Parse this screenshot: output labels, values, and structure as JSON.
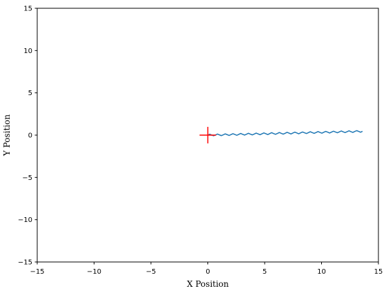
{
  "chart_data": {
    "type": "line",
    "xlabel": "X Position",
    "ylabel": "Y Position",
    "xlim": [
      -15,
      15
    ],
    "ylim": [
      -15,
      15
    ],
    "xticks": [
      {
        "value": -15,
        "label": "−15"
      },
      {
        "value": -10,
        "label": "−10"
      },
      {
        "value": -5,
        "label": "−5"
      },
      0,
      5,
      10,
      15
    ],
    "yticks": [
      {
        "value": -15,
        "label": "−15"
      },
      {
        "value": -10,
        "label": "−10"
      },
      {
        "value": -5,
        "label": "−5"
      },
      0,
      5,
      10,
      15
    ],
    "series": [
      {
        "color": "#1f77b4",
        "marker": "none",
        "x": [
          0,
          0.17,
          0.34,
          0.51,
          0.68,
          0.85,
          1.02,
          1.19,
          1.36,
          1.53,
          1.7,
          1.87,
          2.04,
          2.21,
          2.38,
          2.55,
          2.72,
          2.89,
          3.06,
          3.23,
          3.4,
          3.57,
          3.74,
          3.91,
          4.08,
          4.25,
          4.42,
          4.59,
          4.76,
          4.93,
          5.1,
          5.27,
          5.44,
          5.61,
          5.78,
          5.95,
          6.12,
          6.29,
          6.46,
          6.63,
          6.8,
          6.97,
          7.14,
          7.31,
          7.48,
          7.65,
          7.82,
          7.99,
          8.16,
          8.33,
          8.5,
          8.67,
          8.84,
          9.01,
          9.18,
          9.35,
          9.52,
          9.69,
          9.86,
          10.03,
          10.2,
          10.37,
          10.54,
          10.71,
          10.88,
          11.05,
          11.22,
          11.39,
          11.56,
          11.73,
          11.9,
          12.07,
          12.24,
          12.41,
          12.58,
          12.75,
          12.92,
          13.09,
          13.26,
          13.43,
          13.6
        ],
        "values": [
          0,
          0.11,
          0.01,
          -0.08,
          0.02,
          0.13,
          0.03,
          -0.06,
          0.04,
          0.15,
          0.06,
          -0.04,
          0.07,
          0.17,
          0.08,
          -0.02,
          0.09,
          0.2,
          0.1,
          0.01,
          0.11,
          0.22,
          0.12,
          0.03,
          0.13,
          0.24,
          0.15,
          0.05,
          0.16,
          0.26,
          0.17,
          0.07,
          0.18,
          0.29,
          0.19,
          0.1,
          0.2,
          0.31,
          0.21,
          0.12,
          0.22,
          0.33,
          0.24,
          0.14,
          0.25,
          0.35,
          0.26,
          0.16,
          0.27,
          0.37,
          0.28,
          0.19,
          0.29,
          0.4,
          0.3,
          0.21,
          0.31,
          0.42,
          0.32,
          0.23,
          0.34,
          0.44,
          0.35,
          0.25,
          0.36,
          0.46,
          0.37,
          0.28,
          0.38,
          0.49,
          0.39,
          0.3,
          0.4,
          0.51,
          0.41,
          0.32,
          0.43,
          0.53,
          0.44,
          0.34,
          0.45
        ]
      },
      {
        "color": "red",
        "marker": "+",
        "x": [
          0
        ],
        "values": [
          0
        ]
      }
    ]
  }
}
